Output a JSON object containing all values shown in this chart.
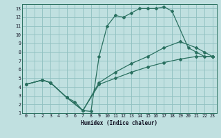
{
  "xlabel": "Humidex (Indice chaleur)",
  "bg_color": "#c0e0e0",
  "line_color": "#2a7060",
  "grid_color": "#90c0c0",
  "xlim": [
    -0.5,
    23.5
  ],
  "ylim": [
    1,
    13.5
  ],
  "xticks": [
    0,
    1,
    2,
    3,
    4,
    5,
    6,
    7,
    8,
    9,
    10,
    11,
    12,
    13,
    14,
    15,
    16,
    17,
    18,
    19,
    20,
    21,
    22,
    23
  ],
  "yticks": [
    1,
    2,
    3,
    4,
    5,
    6,
    7,
    8,
    9,
    10,
    11,
    12,
    13
  ],
  "c1x": [
    0,
    2,
    3,
    5,
    6,
    7,
    8,
    9,
    10,
    11,
    12,
    13,
    14,
    15,
    16,
    17,
    18,
    20,
    21,
    22,
    23
  ],
  "c1y": [
    4.3,
    4.8,
    4.5,
    2.8,
    2.3,
    1.3,
    1.2,
    7.5,
    11.0,
    12.2,
    12.0,
    12.5,
    13.0,
    13.0,
    13.0,
    13.2,
    12.7,
    8.5,
    8.0,
    7.5,
    7.5
  ],
  "c2x": [
    0,
    2,
    3,
    5,
    7,
    9,
    11,
    13,
    15,
    17,
    19,
    21,
    22,
    23
  ],
  "c2y": [
    4.3,
    4.8,
    4.5,
    2.8,
    1.3,
    4.5,
    5.7,
    6.7,
    7.5,
    8.5,
    9.2,
    8.5,
    8.0,
    7.5
  ],
  "c3x": [
    0,
    2,
    3,
    5,
    7,
    9,
    11,
    13,
    15,
    17,
    19,
    21,
    23
  ],
  "c3y": [
    4.3,
    4.8,
    4.5,
    2.8,
    1.3,
    4.3,
    5.0,
    5.7,
    6.3,
    6.8,
    7.2,
    7.5,
    7.5
  ]
}
